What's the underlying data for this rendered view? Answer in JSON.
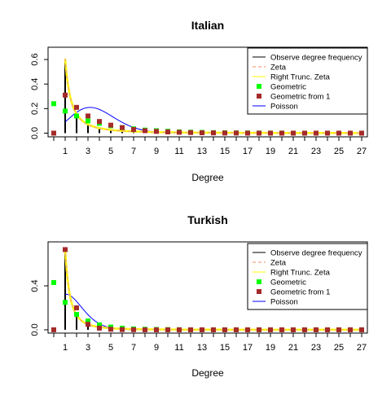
{
  "chart_data": [
    {
      "type": "line",
      "title": "Italian",
      "xlabel": "Degree",
      "ylabel": "",
      "xlim": [
        -0.5,
        27.5
      ],
      "ylim": [
        -0.03,
        0.7
      ],
      "x_ticks": [
        1,
        3,
        5,
        7,
        9,
        11,
        13,
        15,
        17,
        19,
        21,
        23,
        25,
        27
      ],
      "y_ticks": [
        0.0,
        0.2,
        0.4,
        0.6
      ],
      "y_tick_labels": [
        "0.0",
        "0.2",
        "0.4",
        "0.6"
      ],
      "grid": false,
      "legend_position": "top-right",
      "legend": [
        {
          "label": "Observe degree frequency",
          "type": "line",
          "color": "#000000"
        },
        {
          "label": "Zeta",
          "type": "dashed",
          "color": "#f4a582"
        },
        {
          "label": "Right Trunc. Zeta",
          "type": "line",
          "color": "#ffff00"
        },
        {
          "label": "Geometric",
          "type": "point",
          "color": "#00ff00"
        },
        {
          "label": "Geometric from 1",
          "type": "point",
          "color": "#a52a2a"
        },
        {
          "label": "Poisson",
          "type": "line",
          "color": "#0000ff"
        }
      ],
      "observed": {
        "x": [
          1,
          2,
          3,
          4,
          5,
          6,
          7,
          8,
          9,
          10,
          11,
          12
        ],
        "y": [
          0.58,
          0.15,
          0.07,
          0.04,
          0.03,
          0.02,
          0.015,
          0.01,
          0.008,
          0.006,
          0.005,
          0.004
        ]
      },
      "zeta_alpha": 2.0,
      "rtzeta_alpha": 1.95,
      "geometric": {
        "x": [
          0,
          1,
          2,
          3,
          4,
          5,
          6,
          7,
          8,
          9,
          10,
          11,
          12,
          13,
          14,
          15,
          16,
          17,
          18,
          19,
          20,
          21,
          22,
          23,
          24,
          25,
          26,
          27
        ],
        "y": [
          0.24,
          0.18,
          0.14,
          0.1,
          0.08,
          0.06,
          0.045,
          0.035,
          0.025,
          0.02,
          0.015,
          0.01,
          0.008,
          0.006,
          0.004,
          0.003,
          0.002,
          0.002,
          0.001,
          0.001,
          0.001,
          0.0,
          0.0,
          0.0,
          0.0,
          0.0,
          0.0,
          0.0
        ]
      },
      "geometric_from_1": {
        "x": [
          0,
          1,
          2,
          3,
          4,
          5,
          6,
          7,
          8,
          9,
          10,
          11,
          12,
          13,
          14,
          15,
          16,
          17,
          18,
          19,
          20,
          21,
          22,
          23,
          24,
          25,
          26,
          27
        ],
        "y": [
          0.0,
          0.31,
          0.21,
          0.14,
          0.095,
          0.065,
          0.045,
          0.03,
          0.02,
          0.014,
          0.01,
          0.007,
          0.005,
          0.003,
          0.002,
          0.001,
          0.001,
          0.0,
          0.0,
          0.0,
          0.0,
          0.0,
          0.0,
          0.0,
          0.0,
          0.0,
          0.0,
          0.0
        ]
      },
      "poisson_lambda": 3.7
    },
    {
      "type": "line",
      "title": "Turkish",
      "xlabel": "Degree",
      "ylabel": "",
      "xlim": [
        -0.5,
        27.5
      ],
      "ylim": [
        -0.03,
        0.8
      ],
      "x_ticks": [
        1,
        3,
        5,
        7,
        9,
        11,
        13,
        15,
        17,
        19,
        21,
        23,
        25,
        27
      ],
      "y_ticks": [
        0.0,
        0.4
      ],
      "y_tick_labels": [
        "0.0",
        "0.4"
      ],
      "grid": false,
      "legend_position": "top-right",
      "legend": [
        {
          "label": "Observe degree frequency",
          "type": "line",
          "color": "#000000"
        },
        {
          "label": "Zeta",
          "type": "dashed",
          "color": "#f4a582"
        },
        {
          "label": "Right Trunc. Zeta",
          "type": "line",
          "color": "#ffff00"
        },
        {
          "label": "Geometric",
          "type": "point",
          "color": "#00ff00"
        },
        {
          "label": "Geometric from 1",
          "type": "point",
          "color": "#a52a2a"
        },
        {
          "label": "Poisson",
          "type": "line",
          "color": "#0000ff"
        }
      ],
      "observed": {
        "x": [
          1,
          2,
          3,
          4,
          5,
          6,
          7,
          8
        ],
        "y": [
          0.72,
          0.15,
          0.06,
          0.03,
          0.02,
          0.01,
          0.006,
          0.004
        ]
      },
      "zeta_alpha": 2.5,
      "rtzeta_alpha": 2.45,
      "geometric": {
        "x": [
          0,
          1,
          2,
          3,
          4,
          5,
          6,
          7,
          8,
          9,
          10,
          11,
          12,
          13,
          14,
          15,
          16,
          17,
          18,
          19,
          20,
          21,
          22,
          23,
          24,
          25,
          26,
          27
        ],
        "y": [
          0.43,
          0.25,
          0.14,
          0.08,
          0.045,
          0.025,
          0.015,
          0.008,
          0.005,
          0.003,
          0.002,
          0.001,
          0.0,
          0.0,
          0.0,
          0.0,
          0.0,
          0.0,
          0.0,
          0.0,
          0.0,
          0.0,
          0.0,
          0.0,
          0.0,
          0.0,
          0.0,
          0.0
        ]
      },
      "geometric_from_1": {
        "x": [
          0,
          1,
          2,
          3,
          4,
          5,
          6,
          7,
          8,
          9,
          10,
          11,
          12,
          13,
          14,
          15,
          16,
          17,
          18,
          19,
          20,
          21,
          22,
          23,
          24,
          25,
          26,
          27
        ],
        "y": [
          0.0,
          0.73,
          0.2,
          0.05,
          0.015,
          0.005,
          0.002,
          0.001,
          0.0,
          0.0,
          0.0,
          0.0,
          0.0,
          0.0,
          0.0,
          0.0,
          0.0,
          0.0,
          0.0,
          0.0,
          0.0,
          0.0,
          0.0,
          0.0,
          0.0,
          0.0,
          0.0,
          0.0
        ]
      },
      "poisson_lambda": 1.6
    }
  ]
}
